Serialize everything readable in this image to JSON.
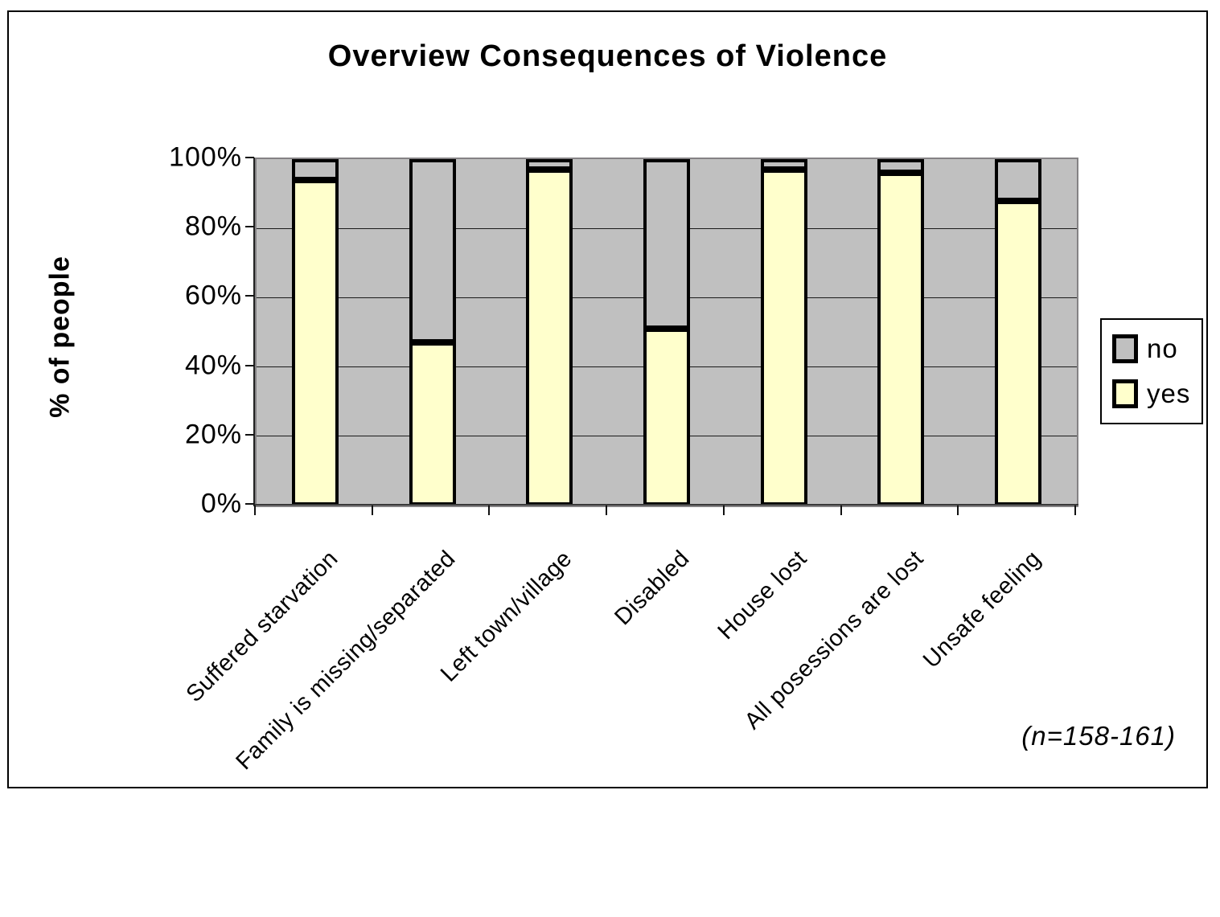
{
  "chart_data": {
    "type": "bar",
    "stacked": true,
    "percent": true,
    "title": "Overview Consequences of Violence",
    "ylabel": "% of people",
    "xlabel": "",
    "ylim": [
      0,
      100
    ],
    "yticks": [
      "0%",
      "20%",
      "40%",
      "60%",
      "80%",
      "100%"
    ],
    "grid": true,
    "legend_position": "right",
    "categories": [
      "Suffered starvation",
      "Family is missing/separated",
      "Left town/village",
      "Disabled",
      "House lost",
      "All posessions are lost",
      "Unsafe feeling"
    ],
    "series": [
      {
        "name": "no",
        "color": "#c0c0c0",
        "values": [
          6,
          53,
          3,
          49,
          3,
          4,
          12
        ]
      },
      {
        "name": "yes",
        "color": "#ffffcc",
        "values": [
          94,
          47,
          97,
          51,
          97,
          96,
          88
        ]
      }
    ],
    "annotation": "(n=158-161)"
  },
  "legend": {
    "items": [
      {
        "label": "no",
        "color": "#c0c0c0"
      },
      {
        "label": "yes",
        "color": "#ffffcc"
      }
    ]
  },
  "colors": {
    "plot_background": "#c0c0c0",
    "plot_border": "#848284",
    "bar_border": "#000000",
    "frame_border": "#000000"
  }
}
